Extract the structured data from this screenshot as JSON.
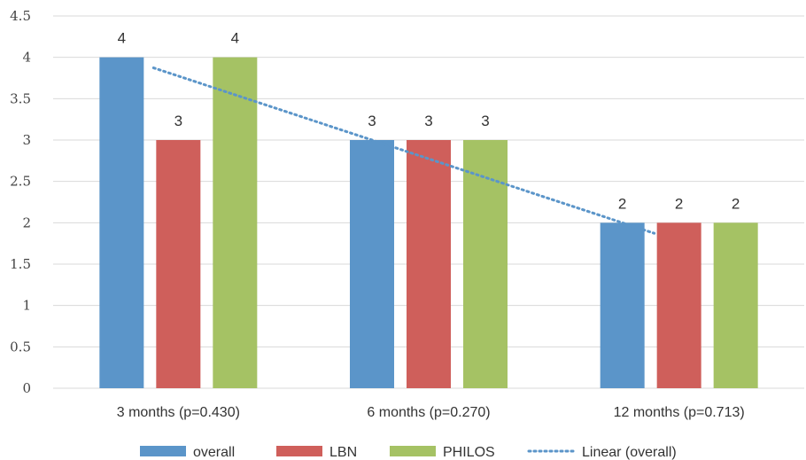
{
  "chart_data": {
    "type": "bar",
    "categories": [
      "3 months (p=0.430)",
      "6 months (p=0.270)",
      "12 months (p=0.713)"
    ],
    "series": [
      {
        "name": "overall",
        "values": [
          4,
          3,
          2
        ],
        "color": "#5b95c9"
      },
      {
        "name": "LBN",
        "values": [
          3,
          3,
          2
        ],
        "color": "#cf5f5b"
      },
      {
        "name": "PHILOS",
        "values": [
          4,
          3,
          2
        ],
        "color": "#a5c264"
      }
    ],
    "trendline": {
      "name": "Linear (overall)",
      "series": "overall",
      "values": [
        4,
        3,
        2
      ],
      "color": "#5b95c9",
      "style": "dotted"
    },
    "y_ticks": [
      "0",
      "0.5",
      "1",
      "1.5",
      "2",
      "2.5",
      "3",
      "3.5",
      "4",
      "4.5"
    ],
    "ylim": [
      0,
      4.5
    ],
    "grid": true,
    "legend_position": "bottom",
    "title": "",
    "xlabel": "",
    "ylabel": ""
  }
}
